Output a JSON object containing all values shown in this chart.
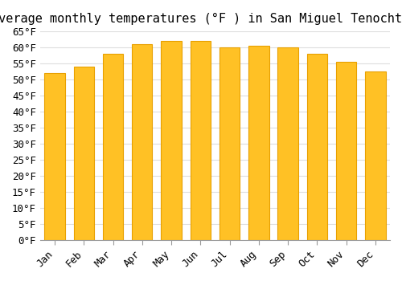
{
  "title": "Average monthly temperatures (°F ) in San Miguel Tenochtitlán",
  "months": [
    "Jan",
    "Feb",
    "Mar",
    "Apr",
    "May",
    "Jun",
    "Jul",
    "Aug",
    "Sep",
    "Oct",
    "Nov",
    "Dec"
  ],
  "values": [
    52,
    54,
    58,
    61,
    62,
    62,
    60,
    60.5,
    60,
    58,
    55.5,
    52.5
  ],
  "bar_color": "#FFC125",
  "bar_edge_color": "#E8A000",
  "background_color": "#FFFFFF",
  "grid_color": "#DDDDDD",
  "ylim": [
    0,
    65
  ],
  "yticks": [
    0,
    5,
    10,
    15,
    20,
    25,
    30,
    35,
    40,
    45,
    50,
    55,
    60,
    65
  ],
  "ylabel_suffix": "°F",
  "title_fontsize": 11,
  "tick_fontsize": 9,
  "font_family": "monospace"
}
